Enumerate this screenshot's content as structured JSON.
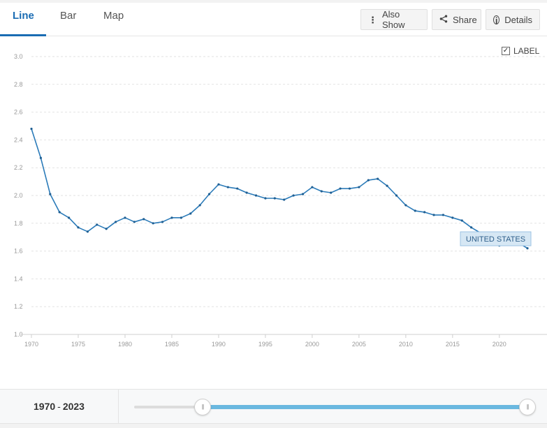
{
  "tabs": [
    {
      "label": "Line",
      "active": true
    },
    {
      "label": "Bar",
      "active": false
    },
    {
      "label": "Map",
      "active": false
    }
  ],
  "toolbar": {
    "also_show": {
      "label": "Also Show",
      "icon": "vertical-dots-icon"
    },
    "share": {
      "label": "Share",
      "icon": "share-icon"
    },
    "details": {
      "label": "Details",
      "icon": "info-icon"
    }
  },
  "label_toggle": {
    "label": "LABEL",
    "checked": true
  },
  "range": {
    "start": "1970",
    "separator": "-",
    "end": "2023"
  },
  "colors": {
    "accent": "#1a6cb3",
    "line": "#2b7bb9",
    "slider": "#6ab8e0",
    "tag_bg": "#d6e7f4"
  },
  "chart_data": {
    "type": "line",
    "title": "",
    "xlabel": "",
    "ylabel": "",
    "xlim": [
      1970,
      2023
    ],
    "ylim": [
      1.0,
      3.0
    ],
    "x_ticks": [
      "1970",
      "1975",
      "1980",
      "1985",
      "1990",
      "1995",
      "2000",
      "2005",
      "2010",
      "2015",
      "2020"
    ],
    "y_ticks": [
      "1.0",
      "1.2",
      "1.4",
      "1.6",
      "1.8",
      "2.0",
      "2.2",
      "2.4",
      "2.6",
      "2.8",
      "3.0"
    ],
    "grid": true,
    "series": [
      {
        "name": "UNITED STATES",
        "x": [
          1970,
          1971,
          1972,
          1973,
          1974,
          1975,
          1976,
          1977,
          1978,
          1979,
          1980,
          1981,
          1982,
          1983,
          1984,
          1985,
          1986,
          1987,
          1988,
          1989,
          1990,
          1991,
          1992,
          1993,
          1994,
          1995,
          1996,
          1997,
          1998,
          1999,
          2000,
          2001,
          2002,
          2003,
          2004,
          2005,
          2006,
          2007,
          2008,
          2009,
          2010,
          2011,
          2012,
          2013,
          2014,
          2015,
          2016,
          2017,
          2018,
          2019,
          2020,
          2021,
          2022,
          2023
        ],
        "values": [
          2.48,
          2.27,
          2.01,
          1.88,
          1.84,
          1.77,
          1.74,
          1.79,
          1.76,
          1.81,
          1.84,
          1.81,
          1.83,
          1.8,
          1.81,
          1.84,
          1.84,
          1.87,
          1.93,
          2.01,
          2.08,
          2.06,
          2.05,
          2.02,
          2.0,
          1.98,
          1.98,
          1.97,
          2.0,
          2.01,
          2.06,
          2.03,
          2.02,
          2.05,
          2.05,
          2.06,
          2.11,
          2.12,
          2.07,
          2.0,
          1.93,
          1.89,
          1.88,
          1.86,
          1.86,
          1.84,
          1.82,
          1.77,
          1.73,
          1.71,
          1.64,
          1.66,
          1.66,
          1.62
        ]
      }
    ]
  }
}
